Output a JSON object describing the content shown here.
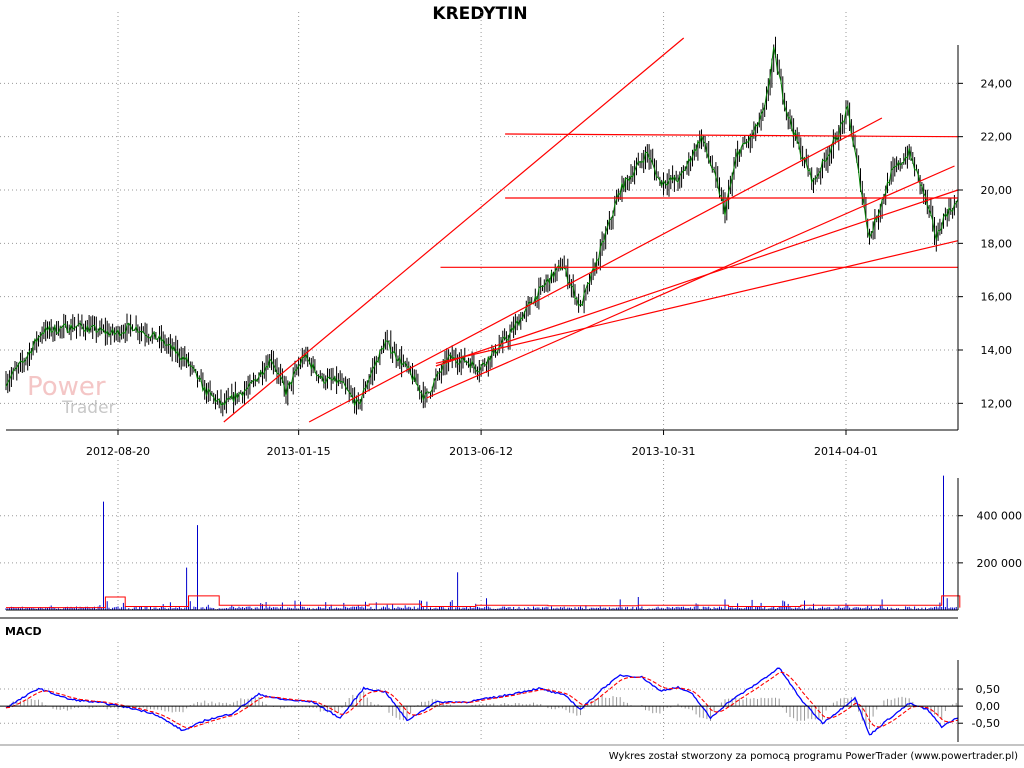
{
  "title": "KREDYTIN",
  "footer": "Wykres został stworzony za pomocą programu PowerTrader (www.powertrader.pl)",
  "watermark": {
    "line1": "Power",
    "line2": "Trader"
  },
  "x_axis": {
    "labels": [
      "2012-08-20",
      "2013-01-15",
      "2013-06-12",
      "2013-10-31",
      "2014-04-01"
    ],
    "label_index": [
      62,
      162,
      263,
      364,
      465
    ]
  },
  "colors": {
    "candle": "#000000",
    "price_line": "#008000",
    "trendline": "#ff0000",
    "volume_bar": "#0000cc",
    "volume_avg": "#ff0000",
    "macd": "#0000ff",
    "signal": "#ff0000",
    "histogram": "#999999"
  },
  "chart_data": [
    {
      "type": "candlestick",
      "name": "price",
      "title": "KREDYTIN",
      "yticks": [
        "12,00",
        "14,00",
        "16,00",
        "18,00",
        "20,00",
        "22,00",
        "24,00"
      ],
      "ytick_values": [
        12,
        14,
        16,
        18,
        20,
        22,
        24
      ],
      "ylim": [
        11,
        26
      ],
      "n_sessions": 528,
      "anchors": [
        [
          0,
          12.8
        ],
        [
          10,
          13.6
        ],
        [
          20,
          14.7
        ],
        [
          40,
          14.9
        ],
        [
          60,
          14.6
        ],
        [
          70,
          14.9
        ],
        [
          85,
          14.4
        ],
        [
          100,
          13.6
        ],
        [
          110,
          12.5
        ],
        [
          120,
          11.9
        ],
        [
          130,
          12.4
        ],
        [
          135,
          12.6
        ],
        [
          147,
          13.7
        ],
        [
          155,
          12.4
        ],
        [
          165,
          13.8
        ],
        [
          175,
          12.9
        ],
        [
          185,
          12.8
        ],
        [
          195,
          11.9
        ],
        [
          200,
          12.8
        ],
        [
          210,
          14.3
        ],
        [
          222,
          13.3
        ],
        [
          232,
          12.2
        ],
        [
          245,
          13.7
        ],
        [
          255,
          13.6
        ],
        [
          262,
          13.3
        ],
        [
          270,
          13.9
        ],
        [
          278,
          14.5
        ],
        [
          290,
          15.7
        ],
        [
          300,
          16.6
        ],
        [
          308,
          17.2
        ],
        [
          318,
          15.6
        ],
        [
          328,
          17.5
        ],
        [
          340,
          20.0
        ],
        [
          355,
          21.4
        ],
        [
          362,
          20.3
        ],
        [
          373,
          20.4
        ],
        [
          385,
          22.0
        ],
        [
          392,
          20.6
        ],
        [
          398,
          19.2
        ],
        [
          405,
          21.4
        ],
        [
          413,
          22.0
        ],
        [
          420,
          23.0
        ],
        [
          425,
          25.2
        ],
        [
          432,
          23.0
        ],
        [
          440,
          21.4
        ],
        [
          447,
          20.3
        ],
        [
          460,
          22.0
        ],
        [
          466,
          23.0
        ],
        [
          470,
          21.4
        ],
        [
          478,
          18.2
        ],
        [
          490,
          20.6
        ],
        [
          500,
          21.4
        ],
        [
          508,
          19.9
        ],
        [
          515,
          18.2
        ],
        [
          520,
          19.1
        ],
        [
          528,
          19.6
        ]
      ],
      "trendlines": [
        {
          "from": [
            "2012-12-06",
            11.3
          ],
          "to": [
            "2014-01-09",
            25.7
          ]
        },
        {
          "from": [
            "2013-02-18",
            11.3
          ],
          "to": [
            "2014-06-30",
            22.7
          ]
        },
        {
          "from": [
            "2013-05-31",
            12.2
          ],
          "to": [
            "2014-09-01",
            20.9
          ]
        },
        {
          "from": [
            "2013-06-08",
            13.4
          ],
          "to": [
            "2014-09-04",
            20.0
          ]
        },
        {
          "from": [
            "2013-06-08",
            13.5
          ],
          "to": [
            "2014-09-04",
            18.1
          ]
        },
        {
          "from": [
            "2013-08-07",
            22.1
          ],
          "to": [
            "2014-09-04",
            22.0
          ]
        },
        {
          "from": [
            "2013-08-07",
            19.7
          ],
          "to": [
            "2014-09-04",
            19.7
          ]
        },
        {
          "from": [
            "2013-06-12",
            17.1
          ],
          "to": [
            "2014-09-04",
            17.1
          ]
        }
      ]
    },
    {
      "type": "bar",
      "name": "volume",
      "yticks": [
        "200 000",
        "400 000"
      ],
      "ytick_values": [
        200000,
        400000
      ],
      "ylim": [
        0,
        560000
      ],
      "spikes": [
        [
          54,
          460000
        ],
        [
          65,
          30000
        ],
        [
          100,
          180000
        ],
        [
          106,
          360000
        ],
        [
          142,
          25000
        ],
        [
          160,
          40000
        ],
        [
          187,
          30000
        ],
        [
          214,
          25000
        ],
        [
          246,
          35000
        ],
        [
          250,
          160000
        ],
        [
          266,
          50000
        ],
        [
          340,
          45000
        ],
        [
          350,
          55000
        ],
        [
          398,
          45000
        ],
        [
          418,
          30000
        ],
        [
          430,
          40000
        ],
        [
          465,
          28000
        ],
        [
          485,
          45000
        ],
        [
          519,
          570000
        ],
        [
          521,
          50000
        ]
      ],
      "avg_steps": [
        [
          0,
          10000
        ],
        [
          54,
          10000
        ],
        [
          55,
          55000
        ],
        [
          66,
          15000
        ],
        [
          100,
          15000
        ],
        [
          101,
          60000
        ],
        [
          118,
          20000
        ],
        [
          200,
          18000
        ],
        [
          201,
          25000
        ],
        [
          230,
          15000
        ],
        [
          260,
          20000
        ],
        [
          300,
          18000
        ],
        [
          350,
          20000
        ],
        [
          400,
          15000
        ],
        [
          440,
          20000
        ],
        [
          515,
          20000
        ],
        [
          518,
          60000
        ],
        [
          527,
          60000
        ],
        [
          528,
          10000
        ]
      ]
    },
    {
      "type": "line",
      "name": "MACD",
      "title": "MACD",
      "yticks": [
        "0,50",
        "0,00",
        "-0,50"
      ],
      "ytick_values": [
        0.5,
        0,
        -0.5
      ],
      "ylim": [
        -1.05,
        1.35
      ],
      "macd_anchors": [
        [
          0,
          -0.05
        ],
        [
          18,
          0.52
        ],
        [
          35,
          0.2
        ],
        [
          55,
          0.08
        ],
        [
          70,
          -0.07
        ],
        [
          82,
          -0.22
        ],
        [
          98,
          -0.72
        ],
        [
          110,
          -0.42
        ],
        [
          125,
          -0.22
        ],
        [
          140,
          0.35
        ],
        [
          152,
          0.2
        ],
        [
          170,
          0.12
        ],
        [
          185,
          -0.35
        ],
        [
          198,
          0.52
        ],
        [
          210,
          0.42
        ],
        [
          222,
          -0.42
        ],
        [
          238,
          0.12
        ],
        [
          255,
          0.12
        ],
        [
          275,
          0.3
        ],
        [
          295,
          0.52
        ],
        [
          310,
          0.3
        ],
        [
          318,
          -0.1
        ],
        [
          330,
          0.5
        ],
        [
          340,
          0.9
        ],
        [
          352,
          0.85
        ],
        [
          362,
          0.45
        ],
        [
          372,
          0.55
        ],
        [
          380,
          0.35
        ],
        [
          390,
          -0.35
        ],
        [
          400,
          0.12
        ],
        [
          414,
          0.6
        ],
        [
          428,
          1.12
        ],
        [
          440,
          0.2
        ],
        [
          452,
          -0.5
        ],
        [
          462,
          -0.1
        ],
        [
          470,
          0.25
        ],
        [
          478,
          -0.85
        ],
        [
          488,
          -0.4
        ],
        [
          500,
          0.08
        ],
        [
          510,
          -0.1
        ],
        [
          518,
          -0.6
        ],
        [
          528,
          -0.3
        ]
      ]
    }
  ]
}
